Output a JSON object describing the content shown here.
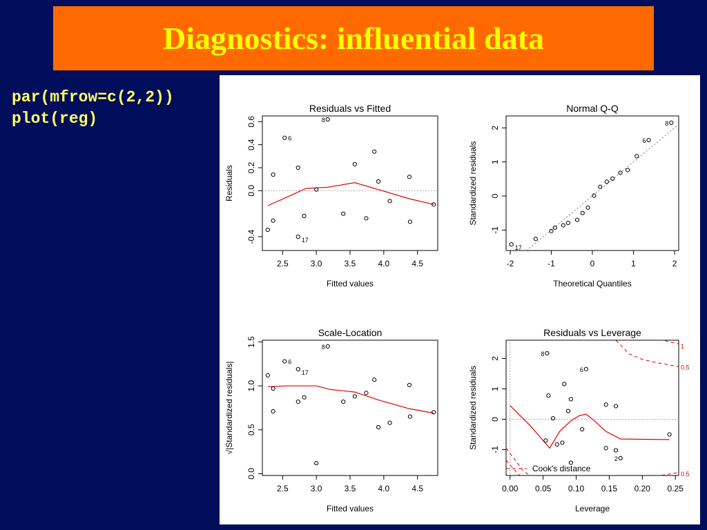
{
  "slide": {
    "title": "Diagnostics: influential data",
    "code_lines": [
      "par(mfrow=c(2,2))",
      "plot(reg)"
    ]
  },
  "colors": {
    "background": "#000d5a",
    "title_bg": "#ff6a00",
    "title_text": "#ffff00",
    "code_text": "#ffff66",
    "smooth_line": "#e00000"
  },
  "chart_data": [
    {
      "type": "scatter",
      "title": "Residuals vs Fitted",
      "xlabel": "Fitted values",
      "ylabel": "Residuals",
      "xlim": [
        2.2,
        4.8
      ],
      "ylim": [
        -0.52,
        0.65
      ],
      "xticks": [
        2.5,
        3.0,
        3.5,
        4.0,
        4.5
      ],
      "xtick_labels": [
        "2.5",
        "3.0",
        "3.5",
        "4.0",
        "4.5"
      ],
      "yticks": [
        -0.4,
        0.0,
        0.2,
        0.4,
        0.6
      ],
      "ytick_labels": [
        "-0.4",
        "0.0",
        "0.2",
        "0.4",
        "0.6"
      ],
      "points": [
        [
          2.28,
          -0.34
        ],
        [
          2.36,
          0.14
        ],
        [
          2.36,
          -0.26
        ],
        [
          2.53,
          0.46
        ],
        [
          2.73,
          0.2
        ],
        [
          2.73,
          -0.4
        ],
        [
          2.82,
          -0.22
        ],
        [
          3.0,
          0.01
        ],
        [
          3.17,
          0.62
        ],
        [
          3.4,
          -0.2
        ],
        [
          3.57,
          0.23
        ],
        [
          3.74,
          -0.24
        ],
        [
          3.86,
          0.34
        ],
        [
          3.92,
          0.08
        ],
        [
          4.09,
          -0.09
        ],
        [
          4.38,
          0.12
        ],
        [
          4.39,
          -0.27
        ],
        [
          4.74,
          -0.12
        ]
      ],
      "point_labels": [
        {
          "x": 2.53,
          "y": 0.46,
          "text": "6"
        },
        {
          "x": 3.17,
          "y": 0.62,
          "text": "8"
        },
        {
          "x": 2.73,
          "y": -0.4,
          "text": "17"
        }
      ],
      "smooth": [
        [
          2.28,
          -0.13
        ],
        [
          2.55,
          -0.06
        ],
        [
          2.85,
          0.02
        ],
        [
          3.17,
          0.03
        ],
        [
          3.57,
          0.07
        ],
        [
          3.92,
          0.01
        ],
        [
          4.38,
          -0.07
        ],
        [
          4.74,
          -0.12
        ]
      ],
      "reference_y": 0.0
    },
    {
      "type": "scatter",
      "title": "Normal Q-Q",
      "xlabel": "Theoretical Quantiles",
      "ylabel": "Standardized residuals",
      "xlim": [
        -2.1,
        2.1
      ],
      "ylim": [
        -1.6,
        2.35
      ],
      "xticks": [
        -2,
        -1,
        0,
        1,
        2
      ],
      "xtick_labels": [
        "-2",
        "-1",
        "0",
        "1",
        "2"
      ],
      "yticks": [
        -1,
        0,
        1,
        2
      ],
      "ytick_labels": [
        "-1",
        "0",
        "1",
        "2"
      ],
      "points": [
        [
          -1.97,
          -1.42
        ],
        [
          -1.38,
          -1.26
        ],
        [
          -1.0,
          -1.03
        ],
        [
          -0.91,
          -0.93
        ],
        [
          -0.71,
          -0.86
        ],
        [
          -0.59,
          -0.79
        ],
        [
          -0.37,
          -0.7
        ],
        [
          -0.24,
          -0.5
        ],
        [
          -0.11,
          -0.34
        ],
        [
          0.04,
          0.01
        ],
        [
          0.19,
          0.27
        ],
        [
          0.35,
          0.42
        ],
        [
          0.49,
          0.51
        ],
        [
          0.68,
          0.68
        ],
        [
          0.86,
          0.76
        ],
        [
          1.08,
          1.17
        ],
        [
          1.37,
          1.64
        ],
        [
          1.92,
          2.15
        ]
      ],
      "point_labels": [
        {
          "x": -1.97,
          "y": -1.42,
          "text": "17"
        },
        {
          "x": 1.37,
          "y": 1.64,
          "text": "6"
        },
        {
          "x": 1.92,
          "y": 2.15,
          "text": "8"
        }
      ],
      "reference_line": [
        [
          -1.6,
          -1.6
        ],
        [
          2.1,
          2.1
        ]
      ]
    },
    {
      "type": "scatter",
      "title": "Scale-Location",
      "xlabel": "Fitted values",
      "ylabel": "√|Standardized residuals|",
      "xlim": [
        2.2,
        4.8
      ],
      "ylim": [
        -0.02,
        1.52
      ],
      "xticks": [
        2.5,
        3.0,
        3.5,
        4.0,
        4.5
      ],
      "xtick_labels": [
        "2.5",
        "3.0",
        "3.5",
        "4.0",
        "4.5"
      ],
      "yticks": [
        0.0,
        0.5,
        1.0,
        1.5
      ],
      "ytick_labels": [
        "0.0",
        "0.5",
        "1.0",
        "1.5"
      ],
      "points": [
        [
          2.28,
          1.12
        ],
        [
          2.36,
          0.97
        ],
        [
          2.36,
          0.71
        ],
        [
          2.53,
          1.28
        ],
        [
          2.73,
          1.19
        ],
        [
          2.73,
          0.82
        ],
        [
          2.82,
          0.87
        ],
        [
          3.0,
          0.12
        ],
        [
          3.17,
          1.45
        ],
        [
          3.4,
          0.82
        ],
        [
          3.57,
          0.88
        ],
        [
          3.74,
          0.92
        ],
        [
          3.86,
          1.07
        ],
        [
          3.92,
          0.53
        ],
        [
          4.09,
          0.58
        ],
        [
          4.38,
          1.01
        ],
        [
          4.39,
          0.65
        ],
        [
          4.74,
          0.7
        ]
      ],
      "point_labels": [
        {
          "x": 2.53,
          "y": 1.28,
          "text": "6"
        },
        {
          "x": 3.17,
          "y": 1.45,
          "text": "8"
        },
        {
          "x": 2.73,
          "y": 1.19,
          "text": "17"
        }
      ],
      "smooth": [
        [
          2.28,
          0.99
        ],
        [
          2.55,
          1.0
        ],
        [
          3.0,
          1.0
        ],
        [
          3.2,
          0.96
        ],
        [
          3.57,
          0.93
        ],
        [
          3.92,
          0.84
        ],
        [
          4.38,
          0.74
        ],
        [
          4.74,
          0.69
        ]
      ]
    },
    {
      "type": "scatter",
      "title": "Residuals vs Leverage",
      "xlabel": "Leverage",
      "ylabel": "Standardized residuals",
      "xlim": [
        -0.006,
        0.255
      ],
      "ylim": [
        -1.85,
        2.6
      ],
      "xticks": [
        0.0,
        0.05,
        0.1,
        0.15,
        0.2,
        0.25
      ],
      "xtick_labels": [
        "0.00",
        "0.05",
        "0.10",
        "0.15",
        "0.20",
        "0.25"
      ],
      "yticks": [
        -1,
        0,
        1,
        2
      ],
      "ytick_labels": [
        "-1",
        "0",
        "1",
        "2"
      ],
      "points": [
        [
          0.056,
          2.17
        ],
        [
          0.054,
          -0.7
        ],
        [
          0.058,
          0.78
        ],
        [
          0.065,
          0.03
        ],
        [
          0.071,
          -0.83
        ],
        [
          0.079,
          -0.77
        ],
        [
          0.082,
          1.16
        ],
        [
          0.088,
          0.27
        ],
        [
          0.092,
          0.66
        ],
        [
          0.092,
          -1.43
        ],
        [
          0.109,
          -0.33
        ],
        [
          0.115,
          1.65
        ],
        [
          0.145,
          0.48
        ],
        [
          0.145,
          -0.95
        ],
        [
          0.16,
          0.43
        ],
        [
          0.16,
          -1.02
        ],
        [
          0.167,
          -1.28
        ],
        [
          0.241,
          -0.5
        ]
      ],
      "point_labels": [
        {
          "x": 0.056,
          "y": 2.17,
          "text": "8"
        },
        {
          "x": 0.115,
          "y": 1.65,
          "text": "6"
        },
        {
          "x": 0.167,
          "y": -1.28,
          "text": "2"
        }
      ],
      "smooth": [
        [
          0.0,
          0.45
        ],
        [
          0.03,
          -0.2
        ],
        [
          0.06,
          -0.95
        ],
        [
          0.075,
          -0.4
        ],
        [
          0.092,
          -0.05
        ],
        [
          0.105,
          0.12
        ],
        [
          0.115,
          0.17
        ],
        [
          0.13,
          -0.1
        ],
        [
          0.145,
          -0.4
        ],
        [
          0.167,
          -0.65
        ],
        [
          0.241,
          -0.67
        ]
      ],
      "cooks_contours": [
        {
          "level": "1",
          "sign": 1,
          "points": [
            [
              0.225,
              2.65
            ],
            [
              0.24,
              2.55
            ],
            [
              0.255,
              2.48
            ]
          ]
        },
        {
          "level": "0.5",
          "sign": 1,
          "points": [
            [
              0.16,
              2.6
            ],
            [
              0.18,
              2.15
            ],
            [
              0.2,
              1.97
            ],
            [
              0.22,
              1.87
            ],
            [
              0.255,
              1.73
            ]
          ]
        },
        {
          "level": "0.5",
          "sign": -1,
          "points": [
            [
              0.21,
              -1.9
            ],
            [
              0.23,
              -1.84
            ],
            [
              0.255,
              -1.75
            ]
          ]
        },
        {
          "level": "",
          "sign": -1,
          "points": [
            [
              -0.006,
              -0.95
            ],
            [
              0.02,
              -1.7
            ],
            [
              0.03,
              -1.85
            ]
          ]
        },
        {
          "level": "",
          "sign": -1,
          "points": [
            [
              -0.006,
              -1.35
            ],
            [
              0.01,
              -1.75
            ],
            [
              0.015,
              -1.85
            ]
          ]
        }
      ],
      "contour_labels": [
        {
          "x": 0.255,
          "y": 2.4,
          "text": "1"
        },
        {
          "x": 0.255,
          "y": 1.7,
          "text": "0.5"
        },
        {
          "x": 0.255,
          "y": -1.8,
          "text": "0.5"
        }
      ],
      "legend": {
        "label": "Cook's distance",
        "position": "bottom-left"
      },
      "reference_y": 0,
      "reference_x": 0
    }
  ]
}
